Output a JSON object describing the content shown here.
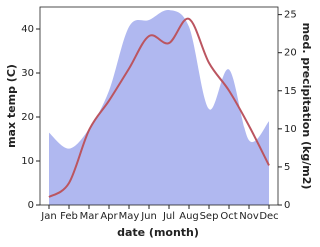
{
  "chart_data": {
    "type": "line-area",
    "x_label": "date (month)",
    "y_label": "max temp (C)",
    "y2_label": "med. precipitation (kg/m2)",
    "categories": [
      "Jan",
      "Feb",
      "Mar",
      "Apr",
      "May",
      "Jun",
      "Jul",
      "Aug",
      "Sep",
      "Oct",
      "Nov",
      "Dec"
    ],
    "series": [
      {
        "name": "max temp",
        "color": "#bb5560",
        "values": [
          1.8,
          5,
          17,
          23.7,
          31,
          38.4,
          36.8,
          42.3,
          32.3,
          26,
          18,
          9
        ]
      },
      {
        "name": "med. precipitation",
        "color": "#b0b8f0",
        "axis": "y2",
        "values": [
          9.5,
          7.4,
          10,
          15,
          23.4,
          24.3,
          25.6,
          23.4,
          12.6,
          17.8,
          8.5,
          11
        ]
      }
    ],
    "ylim": [
      0,
      45
    ],
    "yticks": [
      0,
      10,
      20,
      30,
      40
    ],
    "y2lim": [
      0,
      26
    ],
    "y2ticks": [
      0,
      5,
      10,
      15,
      20,
      25
    ]
  }
}
